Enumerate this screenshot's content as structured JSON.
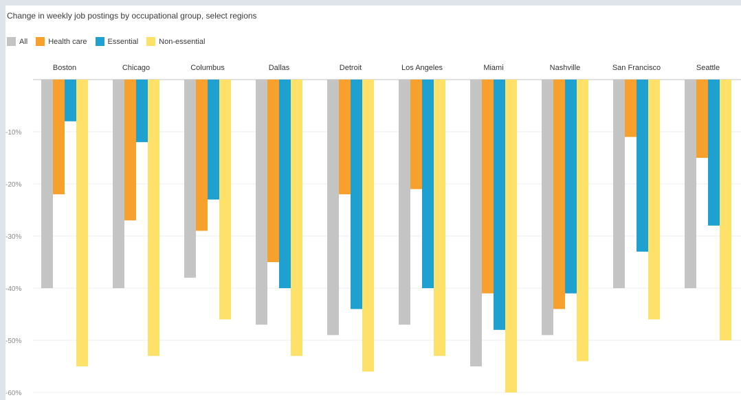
{
  "title": "Change in weekly job postings by occupational group, select regions",
  "legend": [
    {
      "label": "All",
      "color": "#c4c4c4"
    },
    {
      "label": "Health care",
      "color": "#f7a02b"
    },
    {
      "label": "Essential",
      "color": "#1ea1d0"
    },
    {
      "label": "Non-essential",
      "color": "#fde168"
    }
  ],
  "chart_data": {
    "type": "bar",
    "title": "Change in weekly job postings by occupational group, select regions",
    "xlabel": "",
    "ylabel": "",
    "categories": [
      "Boston",
      "Chicago",
      "Columbus",
      "Dallas",
      "Detroit",
      "Los Angeles",
      "Miami",
      "Nashville",
      "San Francisco",
      "Seattle"
    ],
    "series": [
      {
        "name": "All",
        "color": "#c4c4c4",
        "values": [
          -40,
          -40,
          -38,
          -47,
          -49,
          -47,
          -55,
          -49,
          -40,
          -40
        ]
      },
      {
        "name": "Health care",
        "color": "#f7a02b",
        "values": [
          -22,
          -27,
          -29,
          -35,
          -22,
          -21,
          -41,
          -44,
          -11,
          -15
        ]
      },
      {
        "name": "Essential",
        "color": "#1ea1d0",
        "values": [
          -8,
          -12,
          -23,
          -40,
          -44,
          -40,
          -48,
          -41,
          -33,
          -28
        ]
      },
      {
        "name": "Non-essential",
        "color": "#fde168",
        "values": [
          -55,
          -53,
          -46,
          -53,
          -56,
          -53,
          -60,
          -54,
          -46,
          -50
        ]
      }
    ],
    "yticks": [
      -10,
      -20,
      -30,
      -40,
      -50,
      -60
    ],
    "ytick_labels": [
      "-10%",
      "-20%",
      "-30%",
      "-40%",
      "-50%",
      "-60%"
    ],
    "ylim": [
      -60,
      0
    ],
    "grid": true,
    "legend_position": "top-left"
  }
}
